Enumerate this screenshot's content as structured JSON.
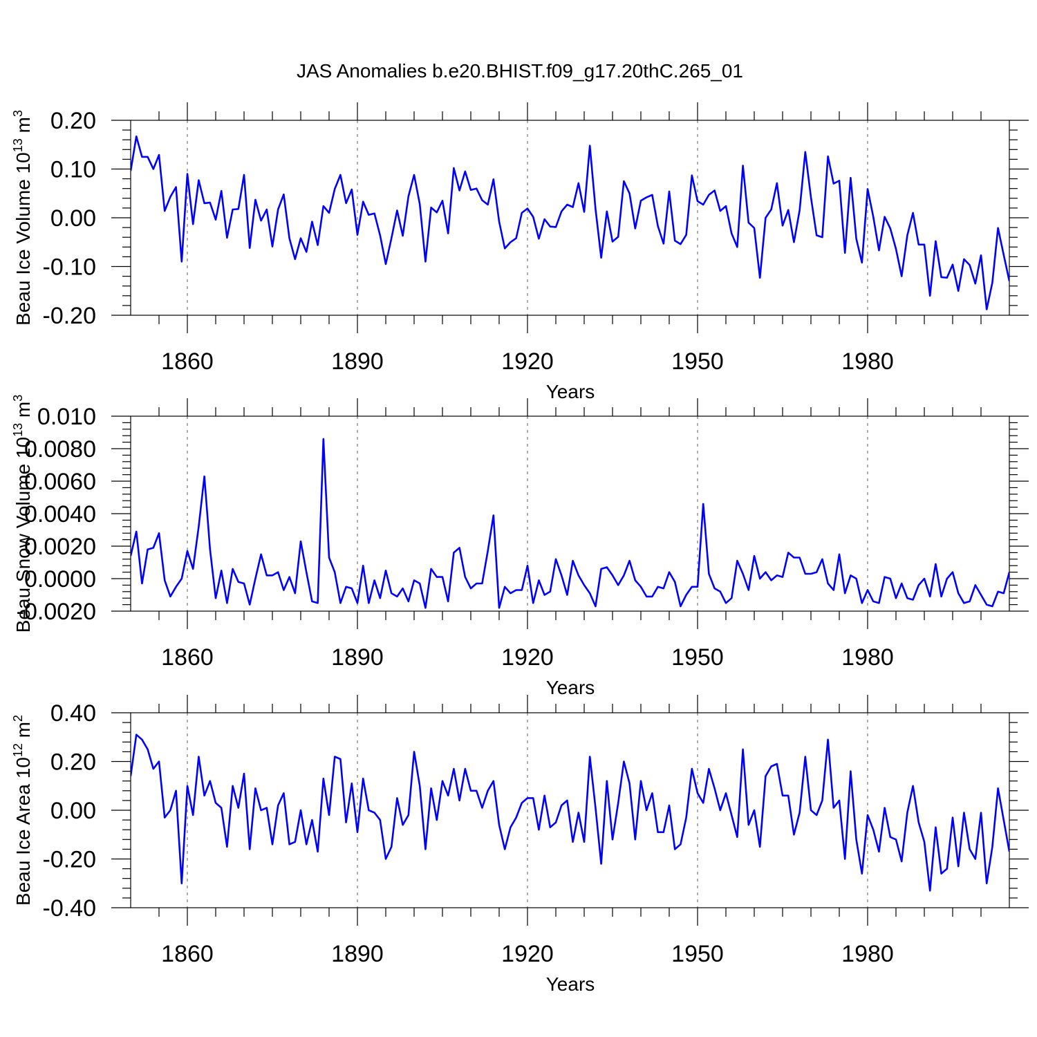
{
  "title": "JAS Anomalies b.e20.BHIST.f09_g17.20thC.265_01",
  "chart_data": [
    {
      "type": "line",
      "ylabel": "Beau Ice Volume 10¹³ m³",
      "xlabel": "Years",
      "xlim": [
        1850,
        2005
      ],
      "ylim": [
        -0.2,
        0.2
      ],
      "grid": "vertical dashed",
      "xticks": [
        1860,
        1890,
        1920,
        1950,
        1980
      ],
      "xtick_labels": [
        "1860",
        "1890",
        "1920",
        "1950",
        "1980"
      ],
      "yticks": [
        -0.2,
        -0.1,
        0.0,
        0.1,
        0.2
      ],
      "ytick_labels": [
        "-0.20",
        "-0.10",
        "0.00",
        "0.10",
        "0.20"
      ],
      "color": "#0000ff",
      "x_start": 1850,
      "values": [
        0.096,
        0.167,
        0.125,
        0.125,
        0.1,
        0.129,
        0.014,
        0.043,
        0.063,
        -0.09,
        0.09,
        -0.013,
        0.077,
        0.03,
        0.031,
        -0.004,
        0.055,
        -0.041,
        0.017,
        0.018,
        0.088,
        -0.062,
        0.037,
        -0.006,
        0.017,
        -0.059,
        0.017,
        0.048,
        -0.042,
        -0.085,
        -0.042,
        -0.07,
        -0.008,
        -0.056,
        0.024,
        0.01,
        0.059,
        0.088,
        0.03,
        0.058,
        -0.035,
        0.033,
        0.006,
        0.009,
        -0.036,
        -0.095,
        -0.042,
        0.015,
        -0.037,
        0.044,
        0.088,
        0.028,
        -0.09,
        0.021,
        0.011,
        0.035,
        -0.032,
        0.102,
        0.056,
        0.095,
        0.057,
        0.06,
        0.036,
        0.027,
        0.079,
        -0.008,
        -0.063,
        -0.05,
        -0.042,
        0.01,
        0.019,
        0.002,
        -0.043,
        -0.003,
        -0.018,
        -0.019,
        0.013,
        0.027,
        0.022,
        0.071,
        0.012,
        0.148,
        0.018,
        -0.082,
        0.013,
        -0.049,
        -0.039,
        0.075,
        0.05,
        -0.022,
        0.035,
        0.042,
        0.047,
        -0.017,
        -0.053,
        0.054,
        -0.047,
        -0.054,
        -0.035,
        0.087,
        0.034,
        0.027,
        0.047,
        0.056,
        0.014,
        0.024,
        -0.032,
        -0.06,
        0.107,
        -0.01,
        -0.021,
        -0.123,
        0.0,
        0.017,
        0.071,
        -0.016,
        0.016,
        -0.05,
        0.015,
        0.135,
        0.042,
        -0.036,
        -0.04,
        0.126,
        0.07,
        0.076,
        -0.072,
        0.082,
        -0.043,
        -0.092,
        0.059,
        0.002,
        -0.067,
        0.002,
        -0.022,
        -0.064,
        -0.12,
        -0.036,
        0.01,
        -0.055,
        -0.055,
        -0.16,
        -0.048,
        -0.122,
        -0.123,
        -0.096,
        -0.15,
        -0.085,
        -0.097,
        -0.135,
        -0.077,
        -0.188,
        -0.133,
        -0.021,
        -0.076,
        -0.13
      ]
    },
    {
      "type": "line",
      "ylabel": "Beau Snow Volume 10¹³ m³",
      "xlabel": "Years",
      "xlim": [
        1850,
        2005
      ],
      "ylim": [
        -0.002,
        0.01
      ],
      "grid": "vertical dashed",
      "xticks": [
        1860,
        1890,
        1920,
        1950,
        1980
      ],
      "xtick_labels": [
        "1860",
        "1890",
        "1920",
        "1950",
        "1980"
      ],
      "yticks": [
        -0.002,
        0.0,
        0.002,
        0.004,
        0.006,
        0.008,
        0.01
      ],
      "ytick_labels": [
        "-0.0020",
        "0.0000",
        "0.0020",
        "0.0040",
        "0.0060",
        "0.0080",
        "0.010"
      ],
      "color": "#0000ff",
      "x_start": 1850,
      "values": [
        0.0014,
        0.0029,
        -0.0003,
        0.0018,
        0.0019,
        0.0028,
        -0.0001,
        -0.0011,
        -0.0005,
        0.0,
        0.0017,
        0.0006,
        0.0032,
        0.0063,
        0.0018,
        -0.0012,
        0.0005,
        -0.0015,
        0.0006,
        -0.0002,
        -0.0003,
        -0.0016,
        0.0,
        0.0015,
        0.0002,
        0.0002,
        0.0004,
        -0.0007,
        0.0001,
        -0.0009,
        0.0023,
        0.0004,
        -0.0014,
        -0.0015,
        0.0086,
        0.0013,
        0.0004,
        -0.0015,
        -0.0005,
        -0.0006,
        -0.0015,
        0.0008,
        -0.0015,
        -0.0001,
        -0.0012,
        0.0005,
        -0.0009,
        -0.0011,
        -0.0006,
        -0.0014,
        -0.0001,
        -0.0003,
        -0.0018,
        0.0006,
        0.0001,
        0.0001,
        -0.0014,
        0.0016,
        0.0019,
        0.0001,
        -0.0006,
        -0.0003,
        -0.0003,
        0.0017,
        0.0039,
        -0.0018,
        -0.0005,
        -0.0009,
        -0.0007,
        -0.0007,
        0.0008,
        -0.0015,
        -0.0001,
        -0.001,
        -0.0008,
        0.0012,
        0.0002,
        -0.001,
        0.0011,
        0.0002,
        -0.0004,
        -0.0009,
        -0.0017,
        0.0006,
        0.0007,
        0.0002,
        -0.0004,
        0.0002,
        0.0011,
        -0.0001,
        -0.0005,
        -0.0011,
        -0.0011,
        -0.0005,
        -0.0006,
        0.0004,
        -0.0002,
        -0.0017,
        -0.001,
        -0.0005,
        -0.0005,
        0.0046,
        0.0003,
        -0.0006,
        -0.0008,
        -0.0015,
        -0.0012,
        0.0011,
        0.0003,
        -0.0007,
        0.0014,
        0.0,
        0.0004,
        -0.0001,
        0.0002,
        0.0001,
        0.0016,
        0.0013,
        0.0013,
        0.0003,
        0.0003,
        0.0004,
        0.0012,
        -0.0003,
        -0.0007,
        0.0015,
        -0.0009,
        0.0002,
        0.0,
        -0.0015,
        -0.0007,
        -0.0014,
        -0.0015,
        0.0001,
        0.0,
        -0.0012,
        -0.0003,
        -0.0012,
        -0.0013,
        -0.0004,
        0.0,
        -0.0011,
        0.0009,
        -0.0011,
        0.0,
        0.0004,
        -0.0009,
        -0.0015,
        -0.0014,
        -0.0004,
        -0.001,
        -0.0016,
        -0.0017,
        -0.0008,
        -0.0009,
        0.0004
      ]
    },
    {
      "type": "line",
      "ylabel": "Beau Ice Area 10¹² m²",
      "xlabel": "Years",
      "xlim": [
        1850,
        2005
      ],
      "ylim": [
        -0.4,
        0.4
      ],
      "grid": "vertical dashed",
      "xticks": [
        1860,
        1890,
        1920,
        1950,
        1980
      ],
      "xtick_labels": [
        "1860",
        "1890",
        "1920",
        "1950",
        "1980"
      ],
      "yticks": [
        -0.4,
        -0.2,
        0.0,
        0.2,
        0.4
      ],
      "ytick_labels": [
        "-0.40",
        "-0.20",
        "0.00",
        "0.20",
        "0.40"
      ],
      "color": "#0000ff",
      "x_start": 1850,
      "values": [
        0.14,
        0.31,
        0.29,
        0.25,
        0.17,
        0.2,
        -0.03,
        0.0,
        0.08,
        -0.3,
        0.1,
        -0.02,
        0.22,
        0.06,
        0.12,
        0.03,
        0.01,
        -0.15,
        0.1,
        0.01,
        0.15,
        -0.16,
        0.09,
        0.0,
        0.01,
        -0.14,
        0.02,
        0.07,
        -0.14,
        -0.13,
        0.0,
        -0.14,
        -0.04,
        -0.17,
        0.13,
        -0.02,
        0.22,
        0.21,
        -0.05,
        0.11,
        -0.09,
        0.13,
        0.0,
        -0.01,
        -0.04,
        -0.2,
        -0.15,
        0.05,
        -0.06,
        -0.02,
        0.24,
        0.1,
        -0.16,
        0.09,
        -0.04,
        0.12,
        0.06,
        0.17,
        0.04,
        0.17,
        0.08,
        0.08,
        0.01,
        0.08,
        0.12,
        -0.06,
        -0.16,
        -0.07,
        -0.03,
        0.03,
        0.05,
        0.05,
        -0.08,
        0.06,
        -0.07,
        -0.05,
        0.02,
        0.04,
        -0.13,
        -0.01,
        -0.13,
        0.22,
        0.01,
        -0.22,
        0.12,
        -0.12,
        0.03,
        0.2,
        0.11,
        -0.12,
        0.12,
        0.0,
        0.07,
        -0.09,
        -0.09,
        0.02,
        -0.16,
        -0.14,
        -0.03,
        0.17,
        0.07,
        0.03,
        0.17,
        0.09,
        0.0,
        0.07,
        -0.02,
        -0.11,
        0.25,
        -0.06,
        0.0,
        -0.15,
        0.14,
        0.18,
        0.19,
        0.06,
        0.06,
        -0.1,
        -0.01,
        0.22,
        0.0,
        -0.02,
        0.04,
        0.29,
        0.01,
        0.04,
        -0.2,
        0.16,
        -0.12,
        -0.26,
        -0.02,
        -0.08,
        -0.17,
        0.01,
        -0.11,
        -0.12,
        -0.21,
        -0.01,
        0.1,
        -0.05,
        -0.13,
        -0.33,
        -0.07,
        -0.26,
        -0.24,
        -0.03,
        -0.23,
        -0.01,
        -0.16,
        -0.2,
        -0.01,
        -0.3,
        -0.15,
        0.09,
        -0.04,
        -0.17
      ]
    }
  ]
}
